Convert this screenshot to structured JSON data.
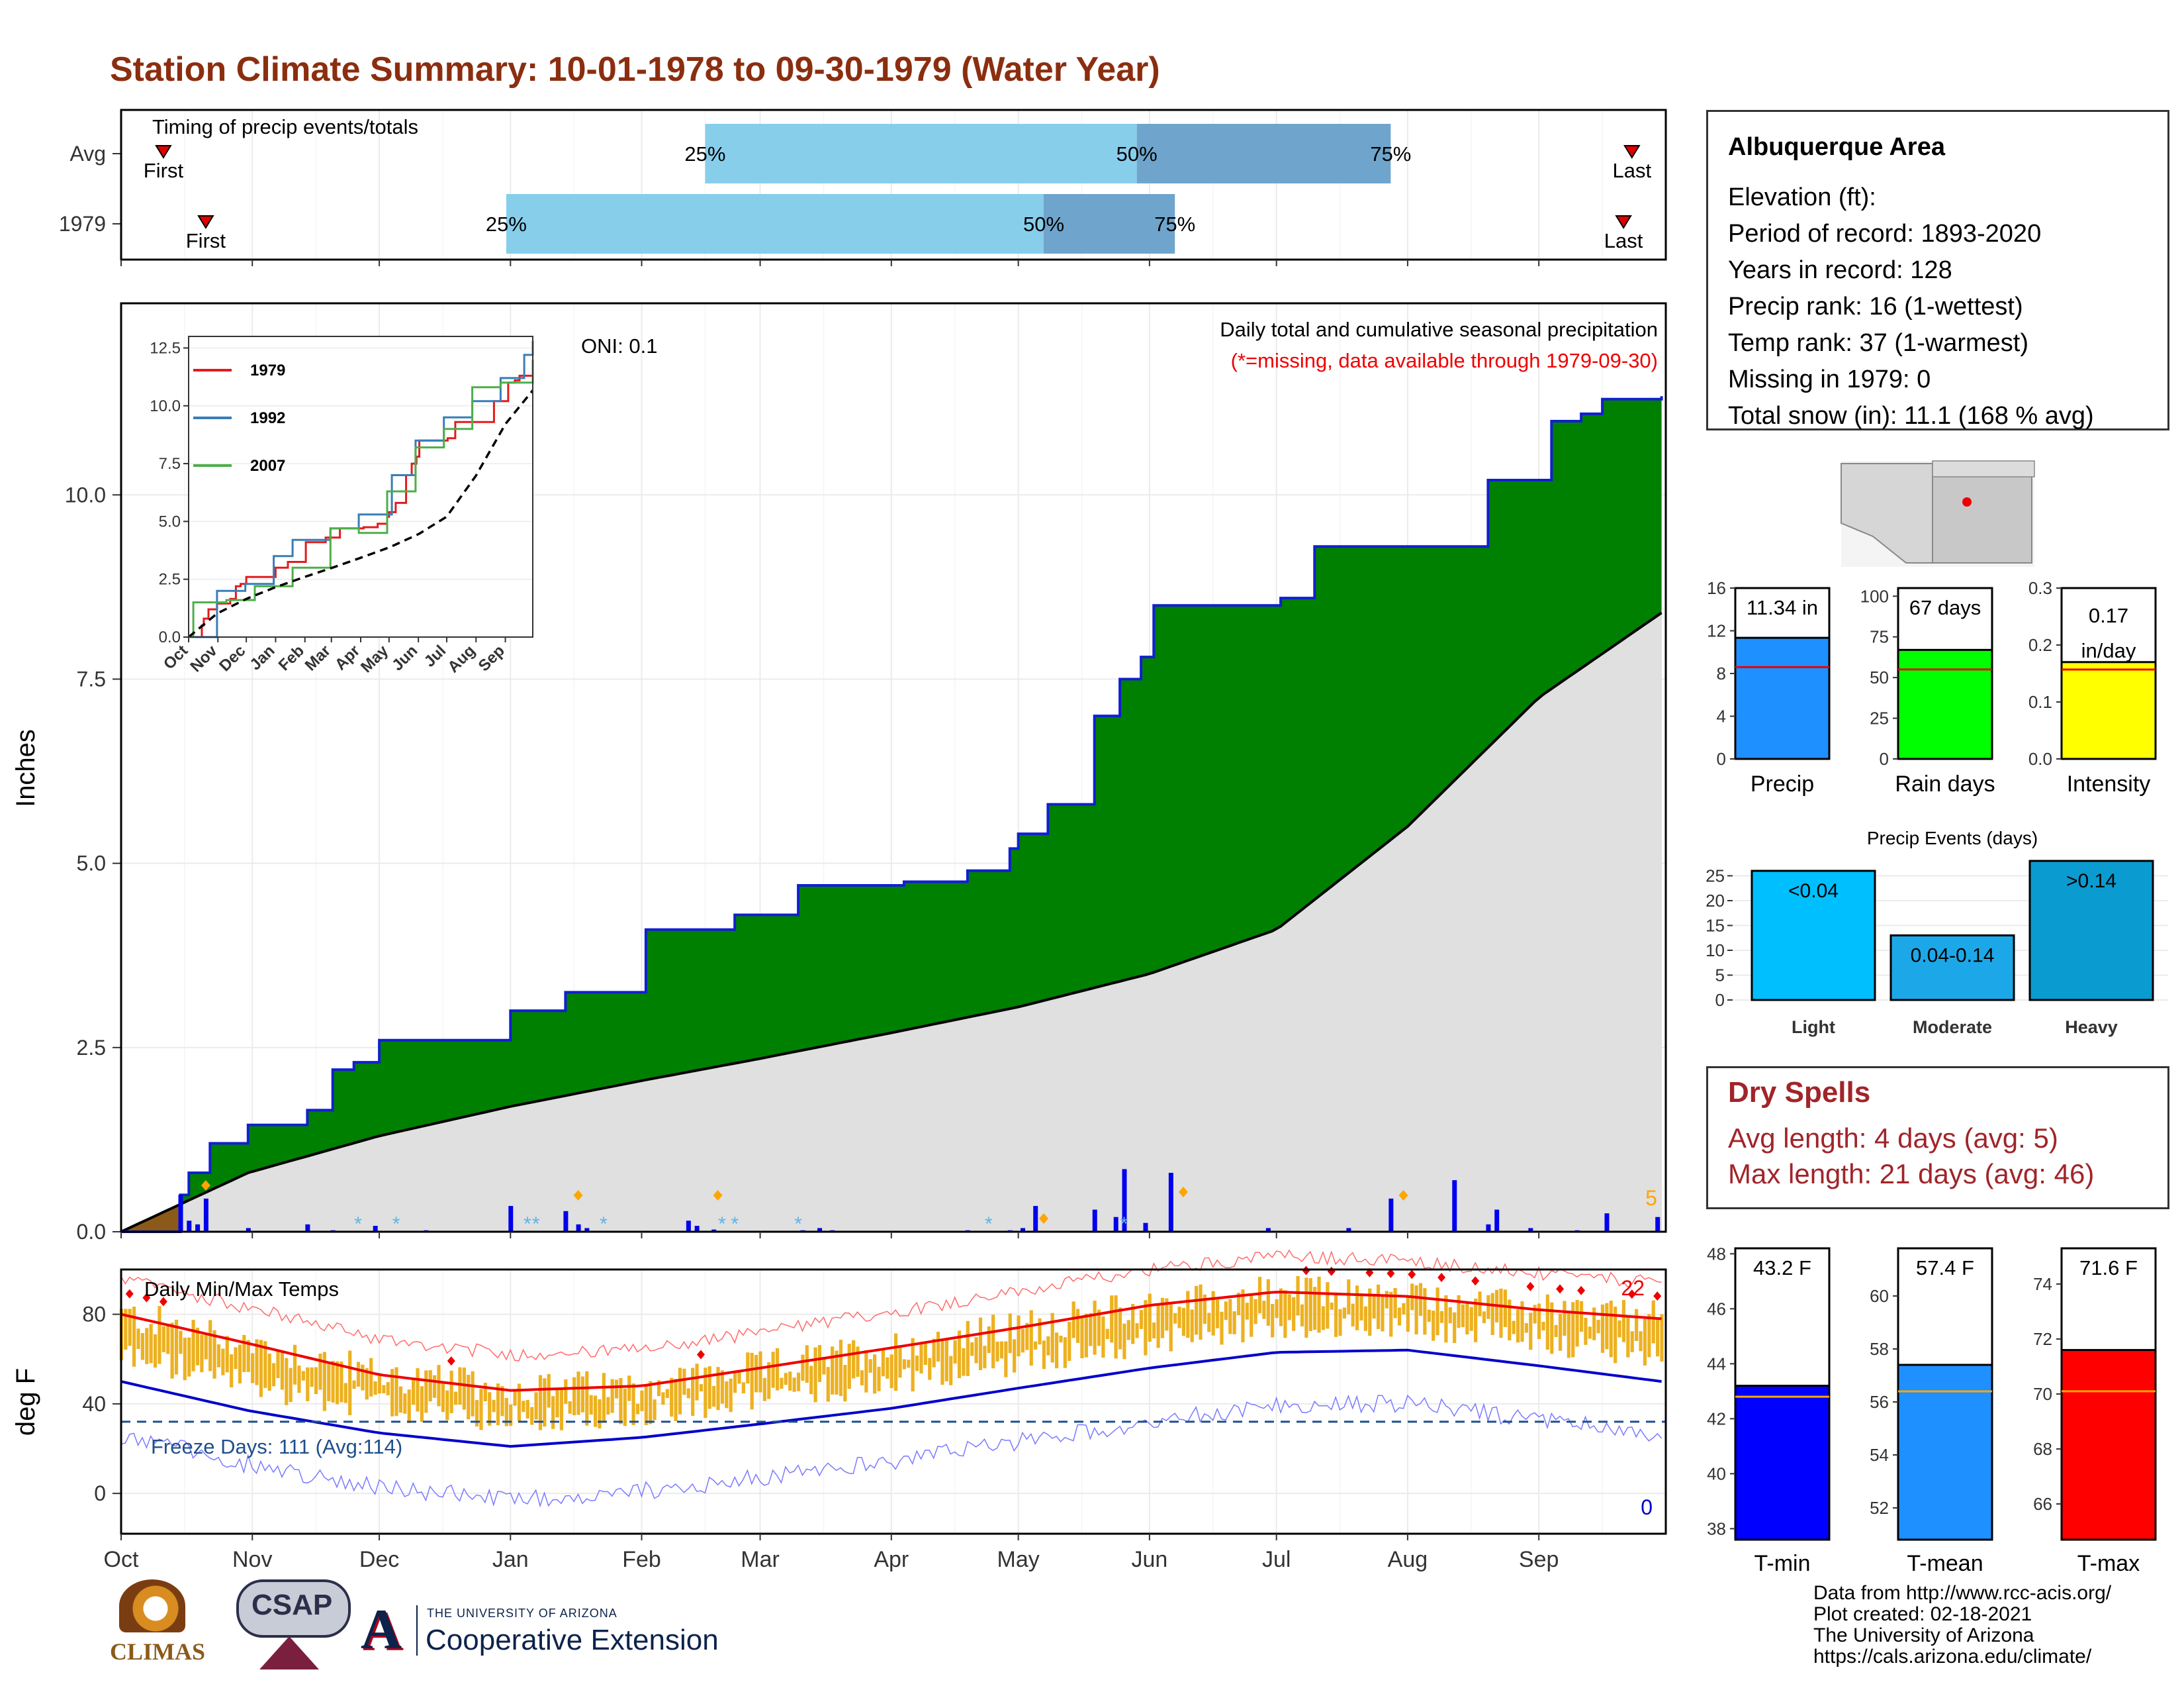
{
  "title": "Station Climate Summary: 10-01-1978 to 09-30-1979 (Water Year)",
  "colors": {
    "title": "#8B2E0F",
    "precip_cum_fill": "#008000",
    "precip_cum_line": "#1020d0",
    "avg_fill": "#e0e0e0",
    "daily_bar": "#0000ee",
    "snow_bar": "#87CEEB",
    "temp_band": "#EDB120",
    "tmax_line": "#ee0000",
    "tmin_line": "#0000cc",
    "freeze_line": "#1f4e8c",
    "timing_light": "#87CEEB",
    "timing_dark": "#6fa5cc",
    "dry_spell": "#A0252A"
  },
  "timing_panel": {
    "heading": "Timing of precip events/totals",
    "rows": [
      {
        "label": "Avg",
        "first": 10,
        "q25": 138,
        "q50": 240,
        "q75": 300,
        "last": 357
      },
      {
        "label": "1979",
        "first": 20,
        "q25": 91,
        "q50": 218,
        "q75": 249,
        "last": 355
      }
    ],
    "markers": {
      "first": "First",
      "last": "Last",
      "p25": "25%",
      "p50": "50%",
      "p75": "75%"
    }
  },
  "month_labels": [
    "Oct",
    "Nov",
    "Dec",
    "Jan",
    "Feb",
    "Mar",
    "Apr",
    "May",
    "Jun",
    "Jul",
    "Aug",
    "Sep"
  ],
  "month_starts": [
    0,
    31,
    61,
    92,
    123,
    151,
    182,
    212,
    243,
    273,
    304,
    335
  ],
  "precip_panel": {
    "ylabel": "Inches",
    "yticks": [
      0.0,
      2.5,
      5.0,
      7.5,
      10.0
    ],
    "ylim": [
      0,
      12.6
    ],
    "caption": "Daily total and cumulative seasonal precipitation",
    "missing_note": "(*=missing, data available through 1979-09-30)",
    "oni": "ONI: 0.1",
    "count_label": "5"
  },
  "inset": {
    "yticks": [
      "0.0",
      "2.5",
      "5.0",
      "7.5",
      "10.0",
      "12.5"
    ],
    "months": [
      "Oct",
      "Nov",
      "Dec",
      "Jan",
      "Feb",
      "Mar",
      "Apr",
      "May",
      "Jun",
      "Jul",
      "Aug",
      "Sep"
    ],
    "legend": [
      "1979",
      "1992",
      "2007"
    ],
    "colors": [
      "#e41a1c",
      "#377eb8",
      "#4daf4a"
    ]
  },
  "temp_panel": {
    "ylabel": "deg F",
    "caption": "Daily Min/Max Temps",
    "freeze_days": "Freeze Days: 111 (Avg:114)",
    "yticks": [
      0,
      40,
      80
    ],
    "ylim": [
      -18,
      100
    ],
    "hot_count": "22",
    "cold_count": "0"
  },
  "station": {
    "name": "Albuquerque Area",
    "lines": [
      "Elevation (ft):",
      "Period of record: 1893-2020",
      "Years in record: 128",
      "Precip rank: 16 (1-wettest)",
      "Temp rank: 37 (1-warmest)",
      "Missing in 1979: 0",
      "Total snow (in): 11.1 (168 % avg)"
    ]
  },
  "mini_bars": [
    {
      "label": "Precip",
      "value_text": "11.34 in",
      "value": 11.34,
      "avg": 8.6,
      "ymax": 16,
      "ticks": [
        0,
        4,
        8,
        12,
        16
      ],
      "color": "#1E90FF"
    },
    {
      "label": "Rain days",
      "value_text": "67 days",
      "value": 67,
      "avg": 55,
      "ymax": 105,
      "ticks": [
        0,
        25,
        50,
        75,
        100
      ],
      "color": "#00FF00"
    },
    {
      "label": "Intensity",
      "value_text": "0.17 in/day",
      "value": 0.17,
      "avg": 0.157,
      "ymax": 0.3,
      "ticks": [
        "0.0",
        "0.1",
        "0.2",
        "0.3"
      ],
      "color": "#FFFF00"
    }
  ],
  "precip_events": {
    "title": "Precip Events (days)",
    "ymax": 28,
    "ticks": [
      0,
      5,
      10,
      15,
      20,
      25
    ],
    "bars": [
      {
        "category": "Light",
        "range": "<0.04",
        "value": 26,
        "color": "#00BFFF"
      },
      {
        "category": "Moderate",
        "range": "0.04-0.14",
        "value": 13,
        "color": "#1CA8E8"
      },
      {
        "category": "Heavy",
        "range": ">0.14",
        "value": 28,
        "color": "#0A9BD0"
      }
    ]
  },
  "dry_spells": {
    "title": "Dry Spells",
    "avg_length": "Avg length: 4 days (avg: 5)",
    "max_length": "Max length: 21 days (avg: 46)"
  },
  "temp_bars": [
    {
      "label": "T-min",
      "value_text": "43.2 F",
      "value": 43.2,
      "avg": 42.8,
      "ymin": 37.6,
      "ymax": 48.2,
      "ticks": [
        38,
        40,
        42,
        44,
        46,
        48
      ],
      "color": "#0000FF"
    },
    {
      "label": "T-mean",
      "value_text": "57.4 F",
      "value": 57.4,
      "avg": 56.4,
      "ymin": 50.8,
      "ymax": 61.8,
      "ticks": [
        52,
        54,
        56,
        58,
        60
      ],
      "color": "#1E90FF"
    },
    {
      "label": "T-max",
      "value_text": "71.6 F",
      "value": 71.6,
      "avg": 70.1,
      "ymin": 64.7,
      "ymax": 75.3,
      "ticks": [
        66,
        68,
        70,
        72,
        74
      ],
      "color": "#FF0000"
    }
  ],
  "footer": [
    "Data from http://www.rcc-acis.org/",
    "Plot created: 02-18-2021",
    "The University of Arizona",
    "https://cals.arizona.edu/climate/"
  ],
  "logos": {
    "climas": "CLIMAS",
    "csap": "CSAP",
    "ua_small": "THE UNIVERSITY OF ARIZONA",
    "ua_big": "Cooperative Extension"
  },
  "chart_data": [
    {
      "type": "area",
      "title": "Daily total and cumulative seasonal precipitation",
      "ylabel": "Inches",
      "x_unit": "day of water year",
      "ylim": [
        0,
        12.6
      ],
      "series": [
        {
          "name": "1979",
          "x": [
            0,
            14,
            16,
            21,
            24,
            30,
            44,
            50,
            55,
            61,
            68,
            82,
            92,
            105,
            124,
            134,
            145,
            160,
            164,
            185,
            200,
            210,
            212,
            219,
            224,
            230,
            236,
            241,
            244,
            260,
            274,
            282,
            294,
            305,
            323,
            338,
            345,
            350,
            364
          ],
          "values": [
            0.0,
            0.5,
            0.8,
            1.2,
            1.2,
            1.45,
            1.65,
            2.2,
            2.3,
            2.6,
            2.6,
            2.6,
            3.0,
            3.25,
            4.1,
            4.1,
            4.3,
            4.7,
            4.7,
            4.75,
            4.9,
            5.2,
            5.4,
            5.8,
            5.8,
            7.0,
            7.5,
            7.8,
            8.5,
            8.5,
            8.6,
            9.3,
            9.3,
            9.3,
            10.2,
            11.0,
            11.1,
            11.3,
            11.34
          ]
        },
        {
          "name": "Avg",
          "x": [
            0,
            30,
            61,
            92,
            123,
            151,
            182,
            212,
            243,
            273,
            304,
            335,
            364
          ],
          "values": [
            0.0,
            0.8,
            1.3,
            1.7,
            2.05,
            2.35,
            2.7,
            3.05,
            3.5,
            4.1,
            5.5,
            7.25,
            8.4
          ]
        }
      ]
    },
    {
      "type": "bar",
      "title": "",
      "series": [
        {
          "name": "",
          "x": [
            14,
            16,
            18,
            20,
            30,
            44,
            50,
            60,
            72,
            92,
            105,
            108,
            110,
            134,
            136,
            140,
            161,
            165,
            168,
            200,
            210,
            213,
            216,
            230,
            235,
            237,
            242,
            248,
            271,
            290,
            300,
            315,
            323,
            325,
            333,
            344,
            351,
            363
          ],
          "values": [
            0.5,
            0.15,
            0.1,
            0.45,
            0.05,
            0.1,
            0.02,
            0.08,
            0.02,
            0.35,
            0.28,
            0.1,
            0.05,
            0.15,
            0.08,
            0.03,
            0.02,
            0.05,
            0.02,
            0.02,
            0.02,
            0.05,
            0.35,
            0.3,
            0.2,
            0.85,
            0.12,
            0.8,
            0.05,
            0.05,
            0.45,
            0.7,
            0.1,
            0.3,
            0.05,
            0.02,
            0.25,
            0.2
          ]
        }
      ]
    },
    {
      "type": "line",
      "title": "Daily Min/Max Temps",
      "ylabel": "deg F",
      "ylim": [
        -18,
        100
      ],
      "series": [
        {
          "name": "Tmax avg",
          "x": [
            0,
            30,
            61,
            92,
            123,
            151,
            182,
            212,
            243,
            273,
            304,
            335,
            364
          ],
          "values": [
            80,
            67,
            53,
            46,
            48,
            56,
            65,
            74,
            84,
            90,
            88,
            82,
            78
          ]
        },
        {
          "name": "Tmin avg",
          "x": [
            0,
            30,
            61,
            92,
            123,
            151,
            182,
            212,
            243,
            273,
            304,
            335,
            364
          ],
          "values": [
            50,
            37,
            27,
            21,
            25,
            31,
            38,
            47,
            56,
            63,
            64,
            57,
            50
          ]
        }
      ]
    }
  ]
}
